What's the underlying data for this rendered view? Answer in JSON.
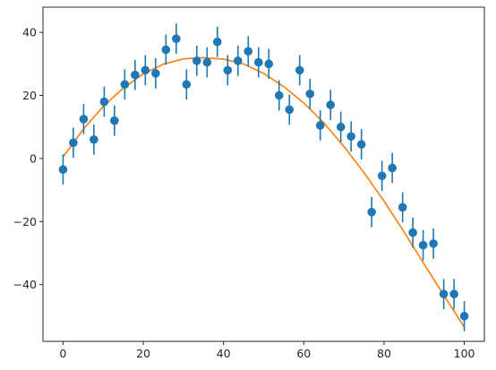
{
  "chart_data": {
    "type": "scatter",
    "title": "",
    "xlabel": "",
    "ylabel": "",
    "xlim": [
      -5,
      105
    ],
    "ylim": [
      -58,
      48
    ],
    "xticks": [
      0,
      20,
      40,
      60,
      80,
      100
    ],
    "yticks": [
      -40,
      -20,
      0,
      20,
      40
    ],
    "grid": false,
    "legend": "none",
    "colors": {
      "points": "#1f77b4",
      "fit": "#ff7f0e"
    },
    "series": [
      {
        "kind": "errorbar",
        "error": 4.8,
        "points": [
          [
            0,
            -3.5
          ],
          [
            2.56,
            5
          ],
          [
            5.13,
            12.5
          ],
          [
            7.69,
            6
          ],
          [
            10.26,
            18
          ],
          [
            12.82,
            12
          ],
          [
            15.38,
            23.5
          ],
          [
            17.95,
            26.5
          ],
          [
            20.51,
            28
          ],
          [
            23.08,
            27
          ],
          [
            25.64,
            34.5
          ],
          [
            28.21,
            38
          ],
          [
            30.77,
            23.5
          ],
          [
            33.33,
            31
          ],
          [
            35.9,
            30.5
          ],
          [
            38.46,
            37
          ],
          [
            41.03,
            28
          ],
          [
            43.59,
            31
          ],
          [
            46.15,
            34
          ],
          [
            48.72,
            30.5
          ],
          [
            51.28,
            30
          ],
          [
            53.85,
            20
          ],
          [
            56.41,
            15.5
          ],
          [
            58.97,
            28
          ],
          [
            61.54,
            20.5
          ],
          [
            64.1,
            10.5
          ],
          [
            66.67,
            17
          ],
          [
            69.23,
            10
          ],
          [
            71.79,
            7
          ],
          [
            74.36,
            4.5
          ],
          [
            76.92,
            -17
          ],
          [
            79.49,
            -5.5
          ],
          [
            82.05,
            -3
          ],
          [
            84.62,
            -15.5
          ],
          [
            87.18,
            -23.5
          ],
          [
            89.74,
            -27.5
          ],
          [
            92.31,
            -27
          ],
          [
            94.87,
            -43
          ],
          [
            97.44,
            -43
          ],
          [
            100,
            -50
          ]
        ]
      },
      {
        "kind": "line",
        "points": [
          [
            0,
            0.5
          ],
          [
            5,
            9.2
          ],
          [
            10,
            16.5
          ],
          [
            15,
            22.3
          ],
          [
            20,
            26.8
          ],
          [
            25,
            29.9
          ],
          [
            30,
            31.6
          ],
          [
            35,
            32
          ],
          [
            40,
            31.5
          ],
          [
            45,
            30
          ],
          [
            50,
            27
          ],
          [
            55,
            22.8
          ],
          [
            60,
            17.6
          ],
          [
            65,
            11.3
          ],
          [
            70,
            3.8
          ],
          [
            75,
            -4.5
          ],
          [
            80,
            -13.5
          ],
          [
            85,
            -23.3
          ],
          [
            90,
            -33.5
          ],
          [
            95,
            -43.6
          ],
          [
            100,
            -53.5
          ]
        ]
      }
    ]
  }
}
